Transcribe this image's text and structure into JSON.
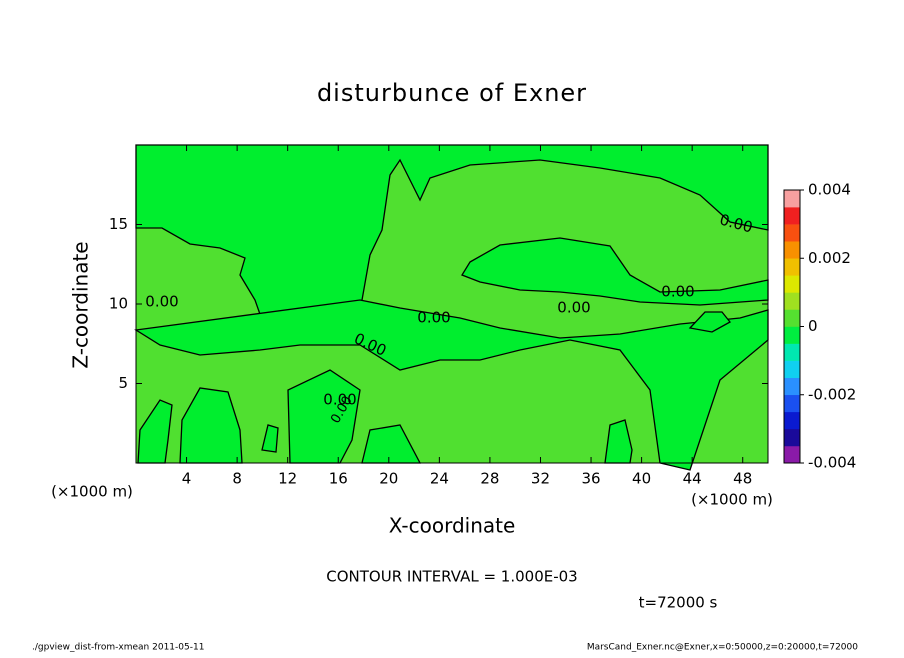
{
  "chart_data": {
    "type": "contour",
    "title": "disturbunce of Exner",
    "x_label": "X-coordinate",
    "y_label": "Z-coordinate",
    "x_unit_left": "(×1000 m)",
    "x_unit_right": "(×1000 m)",
    "xlim": [
      0,
      50
    ],
    "xticks": [
      4,
      8,
      12,
      16,
      20,
      24,
      28,
      32,
      36,
      40,
      44,
      48
    ],
    "ylim": [
      0,
      20
    ],
    "yticks": [
      5,
      10,
      15
    ],
    "contour_labels": [
      "0.00",
      "0.00",
      "0.00",
      "0.00",
      "0.00",
      "0.00",
      "0.00",
      "0.00"
    ],
    "contour_interval": "CONTOUR INTERVAL = 1.000E-03",
    "time": "t=72000 s",
    "colorbar": {
      "lim": [
        -0.004,
        0.004
      ],
      "ticks": [
        0.004,
        0.002,
        0,
        -0.002,
        -0.004
      ],
      "colors": [
        "#8a1aa8",
        "#1a0a9a",
        "#0a1ad0",
        "#1a50f0",
        "#2a90ff",
        "#10d0f0",
        "#00e8b0",
        "#00ee40",
        "#55e030",
        "#a0e020",
        "#dde800",
        "#f0c000",
        "#f89000",
        "#f85010",
        "#f02020",
        "#f8a0a0"
      ]
    },
    "footer_left": "./gpview_dist-from-xmean  2011-05-11",
    "footer_right": "MarsCand_Exner.nc@Exner,x=0:50000,z=0:20000,t=72000"
  }
}
